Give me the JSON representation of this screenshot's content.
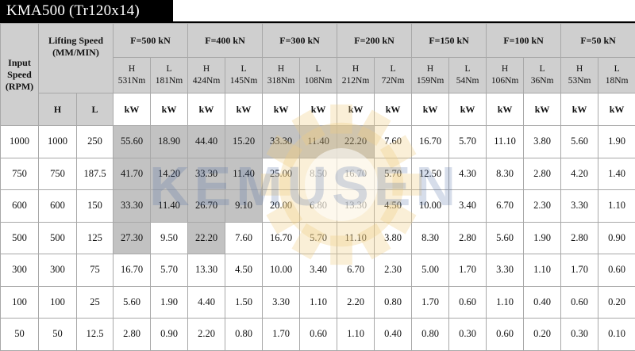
{
  "title": "KMA500 (Tr120x14)",
  "watermark": "KEMUSEN",
  "header": {
    "input_speed": "Input Speed (RPM)",
    "lifting_speed": "Lifting Speed (MM/MIN)",
    "lift_h": "H",
    "lift_l": "L",
    "unit": "kW",
    "loads": [
      {
        "label": "F=500 kN",
        "h_mode": "H",
        "h_torque": "531Nm",
        "l_mode": "L",
        "l_torque": "181Nm"
      },
      {
        "label": "F=400 kN",
        "h_mode": "H",
        "h_torque": "424Nm",
        "l_mode": "L",
        "l_torque": "145Nm"
      },
      {
        "label": "F=300 kN",
        "h_mode": "H",
        "h_torque": "318Nm",
        "l_mode": "L",
        "l_torque": "108Nm"
      },
      {
        "label": "F=200 kN",
        "h_mode": "H",
        "h_torque": "212Nm",
        "l_mode": "L",
        "l_torque": "72Nm"
      },
      {
        "label": "F=150 kN",
        "h_mode": "H",
        "h_torque": "159Nm",
        "l_mode": "L",
        "l_torque": "54Nm"
      },
      {
        "label": "F=100 kN",
        "h_mode": "H",
        "h_torque": "106Nm",
        "l_mode": "L",
        "l_torque": "36Nm"
      },
      {
        "label": "F=50 kN",
        "h_mode": "H",
        "h_torque": "53Nm",
        "l_mode": "L",
        "l_torque": "18Nm"
      }
    ]
  },
  "rows": [
    {
      "rpm": "1000",
      "h": "1000",
      "l": "250",
      "vals": [
        "55.60",
        "18.90",
        "44.40",
        "15.20",
        "33.30",
        "11.40",
        "22.20",
        "7.60",
        "16.70",
        "5.70",
        "11.10",
        "3.80",
        "5.60",
        "1.90"
      ]
    },
    {
      "rpm": "750",
      "h": "750",
      "l": "187.5",
      "vals": [
        "41.70",
        "14.20",
        "33.30",
        "11.40",
        "25.00",
        "8.50",
        "16.70",
        "5.70",
        "12.50",
        "4.30",
        "8.30",
        "2.80",
        "4.20",
        "1.40"
      ]
    },
    {
      "rpm": "600",
      "h": "600",
      "l": "150",
      "vals": [
        "33.30",
        "11.40",
        "26.70",
        "9.10",
        "20.00",
        "6.80",
        "13.30",
        "4.50",
        "10.00",
        "3.40",
        "6.70",
        "2.30",
        "3.30",
        "1.10"
      ]
    },
    {
      "rpm": "500",
      "h": "500",
      "l": "125",
      "vals": [
        "27.30",
        "9.50",
        "22.20",
        "7.60",
        "16.70",
        "5.70",
        "11.10",
        "3.80",
        "8.30",
        "2.80",
        "5.60",
        "1.90",
        "2.80",
        "0.90"
      ]
    },
    {
      "rpm": "300",
      "h": "300",
      "l": "75",
      "vals": [
        "16.70",
        "5.70",
        "13.30",
        "4.50",
        "10.00",
        "3.40",
        "6.70",
        "2.30",
        "5.00",
        "1.70",
        "3.30",
        "1.10",
        "1.70",
        "0.60"
      ]
    },
    {
      "rpm": "100",
      "h": "100",
      "l": "25",
      "vals": [
        "5.60",
        "1.90",
        "4.40",
        "1.50",
        "3.30",
        "1.10",
        "2.20",
        "0.80",
        "1.70",
        "0.60",
        "1.10",
        "0.40",
        "0.60",
        "0.20"
      ]
    },
    {
      "rpm": "50",
      "h": "50",
      "l": "12.5",
      "vals": [
        "2.80",
        "0.90",
        "2.20",
        "0.80",
        "1.70",
        "0.60",
        "1.10",
        "0.40",
        "0.80",
        "0.30",
        "0.60",
        "0.20",
        "0.30",
        "0.10"
      ]
    }
  ],
  "shaded_cells": [
    [
      0,
      0
    ],
    [
      0,
      1
    ],
    [
      0,
      2
    ],
    [
      0,
      3
    ],
    [
      0,
      4
    ],
    [
      0,
      5
    ],
    [
      0,
      6
    ],
    [
      1,
      0
    ],
    [
      1,
      1
    ],
    [
      1,
      2
    ],
    [
      1,
      3
    ],
    [
      2,
      0
    ],
    [
      2,
      1
    ],
    [
      2,
      2
    ],
    [
      2,
      3
    ],
    [
      3,
      0
    ],
    [
      3,
      2
    ]
  ]
}
